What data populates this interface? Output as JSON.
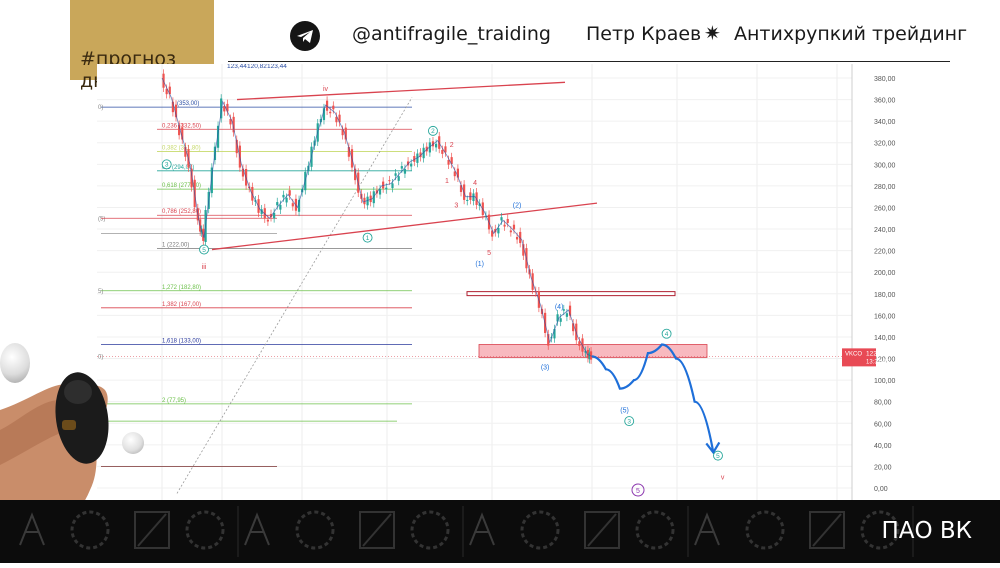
{
  "header": {
    "tag": "#прогноз дня",
    "handle": "@antifragile_traiding",
    "author": "Петр Краев",
    "brand": "Антихрупкий трейдинг",
    "telegram_icon": "telegram-icon",
    "separator_icon": "sparkle-icon"
  },
  "footer": {
    "ticker": "ПАО ВК",
    "pattern_icon": "monogram-pk-pattern"
  },
  "colors": {
    "gold": "#c9a75a",
    "price_up": "#26a69a",
    "price_down": "#ef5350",
    "trend": "#d9434f",
    "forecast": "#1e6fd9",
    "zone": "#f8b9bf"
  },
  "chart_data": {
    "type": "line",
    "y_axis": {
      "ticks": [
        "380,00",
        "360,00",
        "340,00",
        "320,00",
        "300,00",
        "280,00",
        "260,00",
        "240,00",
        "220,00",
        "200,00",
        "180,00",
        "160,00",
        "140,00",
        "120,00",
        "100,00",
        "80,00",
        "60,00",
        "40,00",
        "20,00",
        "0,00"
      ],
      "range": [
        0,
        380
      ]
    },
    "top_readout": [
      "123,44",
      "120,82",
      "123,44"
    ],
    "price_tag": {
      "ticker": "VKCO",
      "value": "122,00",
      "time": "13:31:55"
    },
    "price_series": [
      {
        "t": 0,
        "p": 380
      },
      {
        "t": 2,
        "p": 362
      },
      {
        "t": 4,
        "p": 330
      },
      {
        "t": 6,
        "p": 300
      },
      {
        "t": 8,
        "p": 245
      },
      {
        "t": 9,
        "p": 232
      },
      {
        "t": 11,
        "p": 300
      },
      {
        "t": 13,
        "p": 358
      },
      {
        "t": 15,
        "p": 340
      },
      {
        "t": 17,
        "p": 300
      },
      {
        "t": 19,
        "p": 275
      },
      {
        "t": 21,
        "p": 258
      },
      {
        "t": 23,
        "p": 250
      },
      {
        "t": 25,
        "p": 262
      },
      {
        "t": 27,
        "p": 272
      },
      {
        "t": 29,
        "p": 260
      },
      {
        "t": 31,
        "p": 290
      },
      {
        "t": 33,
        "p": 325
      },
      {
        "t": 35,
        "p": 355
      },
      {
        "t": 37,
        "p": 348
      },
      {
        "t": 39,
        "p": 330
      },
      {
        "t": 41,
        "p": 300
      },
      {
        "t": 43,
        "p": 265
      },
      {
        "t": 45,
        "p": 268
      },
      {
        "t": 47,
        "p": 280
      },
      {
        "t": 49,
        "p": 282
      },
      {
        "t": 51,
        "p": 292
      },
      {
        "t": 53,
        "p": 302
      },
      {
        "t": 55,
        "p": 307
      },
      {
        "t": 57,
        "p": 315
      },
      {
        "t": 59,
        "p": 322
      },
      {
        "t": 61,
        "p": 308
      },
      {
        "t": 63,
        "p": 292
      },
      {
        "t": 65,
        "p": 270
      },
      {
        "t": 67,
        "p": 270
      },
      {
        "t": 69,
        "p": 256
      },
      {
        "t": 71,
        "p": 236
      },
      {
        "t": 73,
        "p": 248
      },
      {
        "t": 75,
        "p": 240
      },
      {
        "t": 77,
        "p": 230
      },
      {
        "t": 79,
        "p": 195
      },
      {
        "t": 81,
        "p": 170
      },
      {
        "t": 83,
        "p": 135
      },
      {
        "t": 85,
        "p": 158
      },
      {
        "t": 87,
        "p": 165
      },
      {
        "t": 89,
        "p": 140
      },
      {
        "t": 91,
        "p": 124
      },
      {
        "t": 92,
        "p": 122
      }
    ],
    "forecast_path": [
      {
        "t": 92,
        "p": 122
      },
      {
        "t": 95,
        "p": 110
      },
      {
        "t": 98,
        "p": 92
      },
      {
        "t": 101,
        "p": 100
      },
      {
        "t": 104,
        "p": 125
      },
      {
        "t": 107,
        "p": 133
      },
      {
        "t": 110,
        "p": 120
      },
      {
        "t": 114,
        "p": 80
      },
      {
        "t": 118,
        "p": 33
      }
    ],
    "fibonacci_levels": [
      {
        "label": "0,236 (332,50)",
        "p": 332.5
      },
      {
        "label": "0,382 (311,80)",
        "p": 311.8
      },
      {
        "label": "0,5 (294,00)",
        "p": 294
      },
      {
        "label": "0,618 (277,00)",
        "p": 277
      },
      {
        "label": "0,786 (252,80)",
        "p": 252.8
      },
      {
        "label": "1 (222,00)",
        "p": 222
      },
      {
        "label": "1,272 (182,80)",
        "p": 182.8
      },
      {
        "label": "1,382 (167,00)",
        "p": 167
      },
      {
        "label": "1,618 (133,00)",
        "p": 133
      },
      {
        "label": "2 (77,95)",
        "p": 77.95
      }
    ],
    "fib_top_label": "(353,00)",
    "left_level_labels": [
      "0)",
      "(5)",
      "5)",
      "0)"
    ],
    "wave_labels": [
      {
        "text": "iv",
        "t": 35,
        "p": 370,
        "color": "#d9434f"
      },
      {
        "text": "iii",
        "t": 9,
        "p": 205,
        "color": "#d9434f"
      },
      {
        "text": "v",
        "t": 120,
        "p": 10,
        "color": "#d9434f"
      },
      {
        "text": "3",
        "t": 1,
        "p": 300,
        "color": "#26a69a",
        "circle": true
      },
      {
        "text": "5",
        "t": 9,
        "p": 221,
        "color": "#26a69a",
        "circle": true
      },
      {
        "text": "1",
        "t": 44,
        "p": 232,
        "color": "#26a69a",
        "circle": true
      },
      {
        "text": "2",
        "t": 58,
        "p": 331,
        "color": "#26a69a",
        "circle": true
      },
      {
        "text": "4",
        "t": 108,
        "p": 143,
        "color": "#26a69a",
        "circle": true
      },
      {
        "text": "3",
        "t": 100,
        "p": 62,
        "color": "#26a69a",
        "circle": true
      },
      {
        "text": "5",
        "t": 119,
        "p": 30,
        "color": "#26a69a",
        "circle": true
      },
      {
        "text": "2",
        "t": 62,
        "p": 318,
        "color": "#d9434f"
      },
      {
        "text": "1",
        "t": 61,
        "p": 285,
        "color": "#d9434f"
      },
      {
        "text": "4",
        "t": 67,
        "p": 283,
        "color": "#d9434f"
      },
      {
        "text": "3",
        "t": 63,
        "p": 262,
        "color": "#d9434f"
      },
      {
        "text": "5",
        "t": 70,
        "p": 218,
        "color": "#d9434f"
      },
      {
        "text": "(1)",
        "t": 68,
        "p": 208,
        "color": "#1e6fd9"
      },
      {
        "text": "(2)",
        "t": 76,
        "p": 262,
        "color": "#1e6fd9"
      },
      {
        "text": "(3)",
        "t": 82,
        "p": 112,
        "color": "#1e6fd9"
      },
      {
        "text": "(4)",
        "t": 85,
        "p": 168,
        "color": "#1e6fd9"
      },
      {
        "text": "(5)",
        "t": 99,
        "p": 72,
        "color": "#1e6fd9"
      }
    ],
    "target_icon": "5",
    "grid": true
  }
}
